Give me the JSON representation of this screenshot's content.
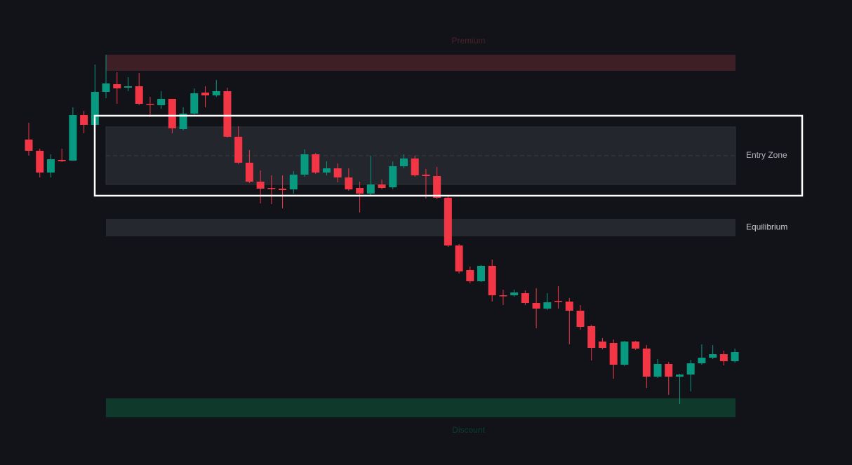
{
  "chart_data": {
    "type": "candlestick",
    "up_color": "#089981",
    "down_color": "#f23645",
    "ylim": [
      0,
      663
    ],
    "open": [
      464,
      448,
      417,
      435,
      434,
      499,
      485,
      532,
      543,
      538,
      540,
      515,
      513,
      522,
      479,
      501,
      531,
      527,
      533,
      468,
      431,
      404,
      395,
      394,
      393,
      414,
      443,
      417,
      423,
      410,
      395,
      387,
      400,
      396,
      426,
      437,
      414,
      412,
      381,
      313,
      278,
      262,
      284,
      242,
      242,
      245,
      231,
      223,
      234,
      233,
      220,
      198,
      176,
      174,
      143,
      176,
      166,
      126,
      144,
      126,
      129,
      145,
      153,
      158,
      148
    ],
    "high": [
      488,
      451,
      443,
      451,
      510,
      505,
      571,
      585,
      560,
      553,
      559,
      525,
      533,
      522,
      510,
      537,
      540,
      549,
      538,
      483,
      449,
      420,
      413,
      413,
      419,
      450,
      445,
      433,
      430,
      423,
      404,
      441,
      407,
      433,
      443,
      441,
      422,
      425,
      385,
      315,
      283,
      285,
      293,
      250,
      250,
      249,
      252,
      245,
      255,
      238,
      228,
      200,
      181,
      179,
      177,
      177,
      171,
      151,
      147,
      130,
      150,
      172,
      171,
      163,
      166
    ],
    "low": [
      441,
      410,
      410,
      432,
      434,
      473,
      473,
      523,
      515,
      533,
      513,
      496,
      508,
      473,
      477,
      500,
      510,
      525,
      467,
      429,
      402,
      373,
      372,
      366,
      387,
      411,
      415,
      413,
      403,
      391,
      360,
      383,
      393,
      393,
      423,
      411,
      380,
      379,
      311,
      273,
      259,
      261,
      233,
      228,
      240,
      228,
      195,
      221,
      223,
      172,
      193,
      149,
      165,
      123,
      141,
      164,
      110,
      124,
      100,
      87,
      105,
      143,
      151,
      142,
      146
    ],
    "close": [
      448,
      417,
      436,
      433,
      499,
      485,
      532,
      544,
      537,
      540,
      515,
      514,
      522,
      480,
      501,
      530,
      527,
      533,
      468,
      431,
      404,
      394,
      394,
      392,
      414,
      443,
      417,
      423,
      410,
      393,
      387,
      400,
      395,
      426,
      437,
      413,
      412,
      381,
      313,
      276,
      262,
      284,
      242,
      241,
      246,
      231,
      223,
      232,
      233,
      220,
      197,
      167,
      167,
      143,
      176,
      166,
      126,
      144,
      126,
      129,
      145,
      153,
      158,
      148,
      161
    ],
    "zones": [
      {
        "label": "Premium",
        "high": 585,
        "low": 562,
        "color": "#3f1f26",
        "label_color": "#4a2128",
        "label_position": "above"
      },
      {
        "label": "Entry Zone",
        "high": 482,
        "low": 400,
        "mid": 441,
        "color": "#24262e",
        "label_color": "#b2b5be",
        "label_position": "right"
      },
      {
        "label": "Equilibrium",
        "high": 351,
        "low": 326,
        "color": "#26282f",
        "label_color": "#c8cad0",
        "label_position": "right"
      },
      {
        "label": "Discount",
        "high": 95,
        "low": 68,
        "color": "#0f3a2b",
        "label_color": "#0d3d2f",
        "label_position": "below"
      }
    ]
  }
}
